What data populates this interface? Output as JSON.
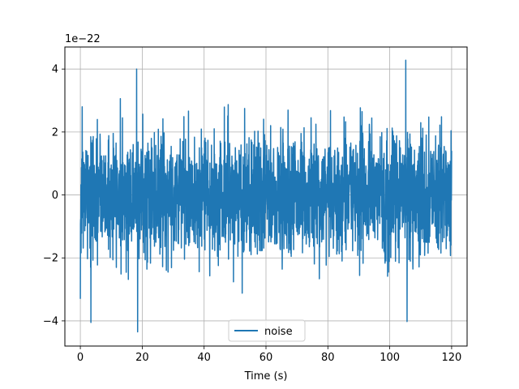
{
  "chart_data": {
    "type": "line",
    "title": "",
    "xlabel": "Time (s)",
    "ylabel": "",
    "y_offset_label": "1e−22",
    "xlim": [
      -5,
      125
    ],
    "ylim": [
      -4.8,
      4.7
    ],
    "xticks": [
      0,
      20,
      40,
      60,
      80,
      100,
      120
    ],
    "xtick_labels": [
      "0",
      "20",
      "40",
      "60",
      "80",
      "100",
      "120"
    ],
    "yticks": [
      -4,
      -2,
      0,
      2,
      4
    ],
    "ytick_labels": [
      "−4",
      "−2",
      "0",
      "2",
      "4"
    ],
    "grid": true,
    "legend_position": "lower-center",
    "series": [
      {
        "name": "noise",
        "color": "#1f77b4",
        "x_range": [
          0,
          120
        ],
        "approx_std": 0.95,
        "x": [
          0.0,
          0.6,
          3.4,
          18.2,
          18.5,
          105.2,
          105.6,
          120.0
        ],
        "y": [
          -3.3,
          2.8,
          -4.05,
          4.0,
          -4.35,
          4.28,
          -4.02,
          1.4
        ]
      }
    ]
  }
}
